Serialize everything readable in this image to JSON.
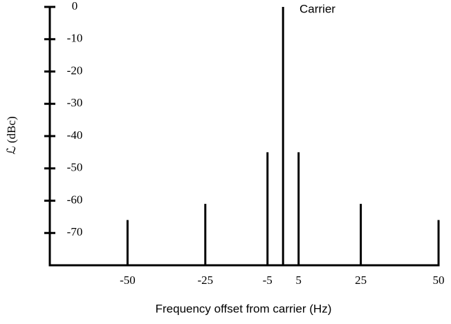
{
  "chart_data": {
    "type": "stem",
    "annotation": "Carrier",
    "xlabel": "Frequency offset from carrier (Hz)",
    "ylabel": "ℒ (dBc)",
    "x": [
      -50,
      -25,
      -5,
      0,
      5,
      25,
      50
    ],
    "values": [
      -66,
      -61,
      -45,
      0,
      -45,
      -61,
      -66
    ],
    "color": "#000000",
    "xlim": [
      -75,
      50
    ],
    "xticks": [
      -50,
      -25,
      -5,
      5,
      25,
      50
    ],
    "ylim": [
      -80,
      0
    ],
    "yticks": [
      0,
      -10,
      -20,
      -30,
      -40,
      -50,
      -60,
      -70
    ]
  }
}
